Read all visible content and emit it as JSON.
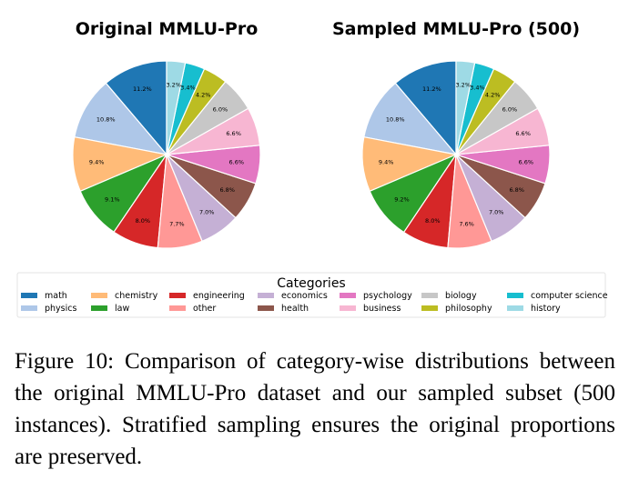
{
  "chart_data": [
    {
      "type": "pie",
      "title": "Original MMLU-Pro",
      "slices": [
        {
          "label": "math",
          "value": 11.2,
          "color": "#1f77b4"
        },
        {
          "label": "physics",
          "value": 10.8,
          "color": "#aec7e8"
        },
        {
          "label": "chemistry",
          "value": 9.4,
          "color": "#ffbb78"
        },
        {
          "label": "law",
          "value": 9.1,
          "color": "#2ca02c"
        },
        {
          "label": "engineering",
          "value": 8.0,
          "color": "#d62728"
        },
        {
          "label": "other",
          "value": 7.7,
          "color": "#ff9896"
        },
        {
          "label": "economics",
          "value": 7.0,
          "color": "#c5b0d5"
        },
        {
          "label": "health",
          "value": 6.8,
          "color": "#8c564b"
        },
        {
          "label": "psychology",
          "value": 6.6,
          "color": "#e377c2"
        },
        {
          "label": "business",
          "value": 6.6,
          "color": "#f7b6d2"
        },
        {
          "label": "biology",
          "value": 6.0,
          "color": "#c7c7c7"
        },
        {
          "label": "philosophy",
          "value": 4.2,
          "color": "#bcbd22"
        },
        {
          "label": "computer science",
          "value": 3.4,
          "color": "#17becf"
        },
        {
          "label": "history",
          "value": 3.2,
          "color": "#9edae5"
        }
      ]
    },
    {
      "type": "pie",
      "title": "Sampled MMLU-Pro (500)",
      "slices": [
        {
          "label": "math",
          "value": 11.2,
          "color": "#1f77b4"
        },
        {
          "label": "physics",
          "value": 10.8,
          "color": "#aec7e8"
        },
        {
          "label": "chemistry",
          "value": 9.4,
          "color": "#ffbb78"
        },
        {
          "label": "law",
          "value": 9.2,
          "color": "#2ca02c"
        },
        {
          "label": "engineering",
          "value": 8.0,
          "color": "#d62728"
        },
        {
          "label": "other",
          "value": 7.6,
          "color": "#ff9896"
        },
        {
          "label": "economics",
          "value": 7.0,
          "color": "#c5b0d5"
        },
        {
          "label": "health",
          "value": 6.8,
          "color": "#8c564b"
        },
        {
          "label": "psychology",
          "value": 6.6,
          "color": "#e377c2"
        },
        {
          "label": "business",
          "value": 6.6,
          "color": "#f7b6d2"
        },
        {
          "label": "biology",
          "value": 6.0,
          "color": "#c7c7c7"
        },
        {
          "label": "philosophy",
          "value": 4.2,
          "color": "#bcbd22"
        },
        {
          "label": "computer science",
          "value": 3.4,
          "color": "#17becf"
        },
        {
          "label": "history",
          "value": 3.2,
          "color": "#9edae5"
        }
      ]
    }
  ],
  "legend": {
    "title": "Categories",
    "placement": "bottom-center",
    "items": [
      {
        "label": "math",
        "color": "#1f77b4"
      },
      {
        "label": "physics",
        "color": "#aec7e8"
      },
      {
        "label": "chemistry",
        "color": "#ffbb78"
      },
      {
        "label": "law",
        "color": "#2ca02c"
      },
      {
        "label": "engineering",
        "color": "#d62728"
      },
      {
        "label": "other",
        "color": "#ff9896"
      },
      {
        "label": "economics",
        "color": "#c5b0d5"
      },
      {
        "label": "health",
        "color": "#8c564b"
      },
      {
        "label": "psychology",
        "color": "#e377c2"
      },
      {
        "label": "business",
        "color": "#f7b6d2"
      },
      {
        "label": "biology",
        "color": "#c7c7c7"
      },
      {
        "label": "philosophy",
        "color": "#bcbd22"
      },
      {
        "label": "computer science",
        "color": "#17becf"
      },
      {
        "label": "history",
        "color": "#9edae5"
      }
    ]
  },
  "caption": "Figure 10: Comparison of category-wise distributions between the original MMLU-Pro dataset and our sampled subset (500 instances). Stratified sampling ensures the original proportions are preserved."
}
